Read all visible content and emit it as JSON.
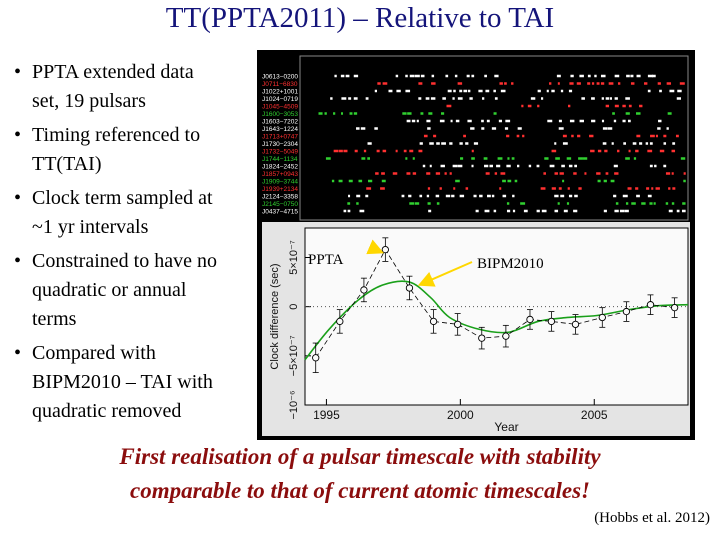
{
  "title": "TT(PPTA2011) – Relative to TAI",
  "bullets": [
    [
      "PPTA extended data",
      "set, 19 pulsars"
    ],
    [
      "Timing referenced to",
      "TT(TAI)"
    ],
    [
      "Clock term sampled at",
      "~1 yr intervals"
    ],
    [
      "Constrained to have no",
      "quadratic or annual",
      "terms"
    ],
    [
      "Compared with",
      "BIPM2010 – TAI with",
      "quadratic removed"
    ]
  ],
  "figure": {
    "pulsars": [
      "J0613−0200",
      "J0711−6830",
      "J1022+1001",
      "J1024−0719",
      "J1045−4509",
      "J1600−3053",
      "J1603−7202",
      "J1643−1224",
      "J1713+0747",
      "J1730−2304",
      "J1732−5049",
      "J1744−1134",
      "J1824−2452",
      "J1857+0943",
      "J1909−3744",
      "J1939+2134",
      "J2124−3358",
      "J2145−0750",
      "J0437−4715"
    ],
    "row_colors": [
      "#ffffff",
      "#ff3030",
      "#ffffff",
      "#ffffff",
      "#ff3030",
      "#30d030",
      "#ffffff",
      "#ffffff",
      "#ff3030",
      "#ffffff",
      "#ff3030",
      "#30d030",
      "#ffffff",
      "#ff3030",
      "#30d030",
      "#ff3030",
      "#ffffff",
      "#30d030",
      "#ffffff"
    ],
    "plot": {
      "ylabel": "Clock difference (sec)",
      "xlabel": "Year",
      "xlim": [
        1994.2,
        2008.5
      ],
      "xticks": [
        1995,
        2000,
        2005
      ],
      "ylim": [
        -1e-06,
        8e-07
      ],
      "yticks": [
        {
          "value": -1e-06,
          "label": "−10⁻⁶"
        },
        {
          "value": -5e-07,
          "label": "−5×10⁻⁷"
        },
        0,
        {
          "value": 5e-07,
          "label": "5×10⁻⁷"
        }
      ],
      "series": [
        {
          "name": "PPTA",
          "color": "#000000",
          "x": [
            1994.6,
            1995.5,
            1996.4,
            1997.2,
            1998.1,
            1999.0,
            1999.9,
            2000.8,
            2001.7,
            2002.6,
            2003.4,
            2004.3,
            2005.3,
            2006.2,
            2007.1,
            2008.0
          ],
          "values": [
            -5.2e-07,
            -1.5e-07,
            1.7e-07,
            5.8e-07,
            1.9e-07,
            -1.5e-07,
            -1.8e-07,
            -3.2e-07,
            -3e-07,
            -1.3e-07,
            -1.5e-07,
            -1.8e-07,
            -1.1e-07,
            -5e-08,
            2e-08,
            -1e-08
          ],
          "errors": [
            1.5e-07,
            1.2e-07,
            1.2e-07,
            1.2e-07,
            1.2e-07,
            1.2e-07,
            1.1e-07,
            1.1e-07,
            1.1e-07,
            1e-07,
            1e-07,
            1e-07,
            1e-07,
            1e-07,
            1e-07,
            1e-07
          ]
        },
        {
          "name": "BIPM2010",
          "color": "#1aa01a",
          "x": [
            1994.2,
            1995.1,
            1996.2,
            1997.1,
            1998.1,
            1998.9,
            1999.6,
            2000.7,
            2001.8,
            2002.9,
            2004.0,
            2005.1,
            2006.3,
            2007.4,
            2008.5
          ],
          "values": [
            -5.4e-07,
            -2.3e-07,
            7e-08,
            2.2e-07,
            2.5e-07,
            9e-08,
            -1.1e-07,
            -2.3e-07,
            -2.6e-07,
            -1.5e-07,
            -1.1e-07,
            -9e-08,
            -3e-08,
            1e-08,
            2e-08
          ]
        }
      ]
    }
  },
  "caption": [
    "First realisation of a pulsar timescale with stability",
    "comparable to that of current atomic timescales!"
  ],
  "citation": "(Hobbs et al. 2012)"
}
